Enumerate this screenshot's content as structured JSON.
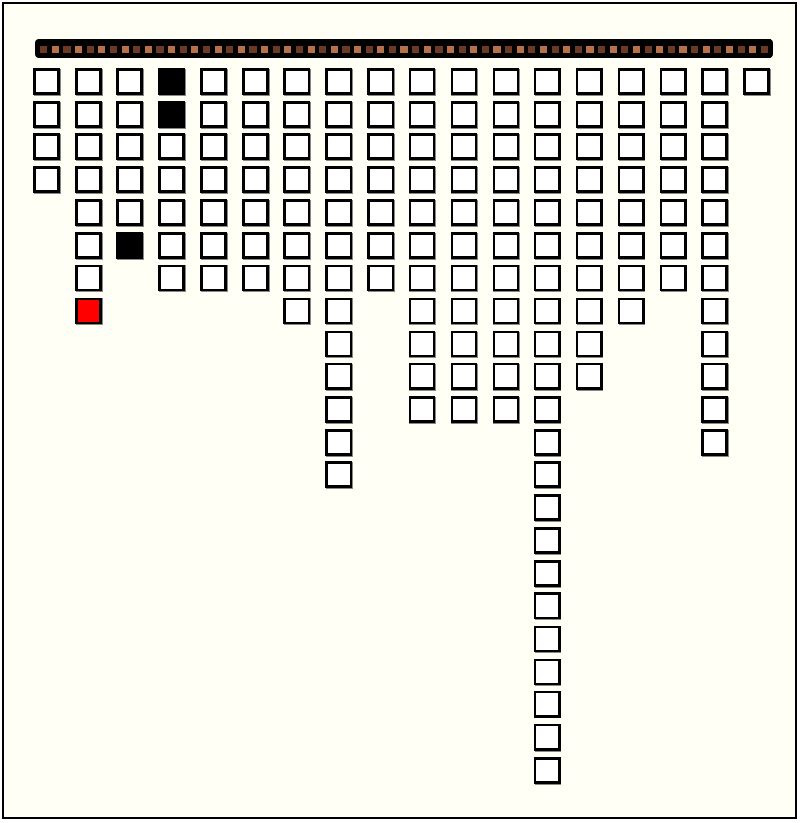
{
  "game": {
    "columns": [
      4,
      8,
      6,
      7,
      7,
      7,
      8,
      13,
      7,
      11,
      11,
      11,
      22,
      10,
      8,
      7,
      12,
      1
    ],
    "special_cells": [
      {
        "col": 1,
        "row": 7,
        "state": "red"
      },
      {
        "col": 2,
        "row": 5,
        "state": "black"
      },
      {
        "col": 3,
        "row": 0,
        "state": "black"
      },
      {
        "col": 3,
        "row": 1,
        "state": "black"
      }
    ],
    "colors": {
      "background": "#fffff5",
      "empty": "#ffffff",
      "black": "#000000",
      "red": "#ff0000",
      "bar_dark": "#6b3a24",
      "bar_light": "#b87048"
    }
  }
}
